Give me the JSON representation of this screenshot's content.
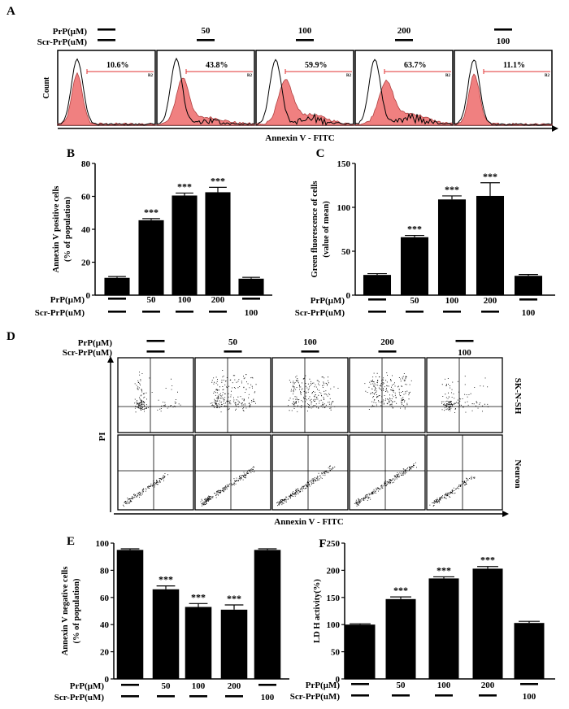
{
  "colors": {
    "fill": "#f08080",
    "fill_line": "#d8a0a0",
    "outline": "#000000",
    "gate": "#e03030"
  },
  "dash": "—",
  "panelA": {
    "letter": "A",
    "row1_label": "PrP(μM)",
    "row2_label": "Scr-PrP(uM)",
    "prp": [
      "—",
      "50",
      "100",
      "200",
      "—"
    ],
    "scr": [
      "—",
      "—",
      "—",
      "—",
      "100"
    ],
    "percents": [
      "10.6%",
      "43.8%",
      "59.9%",
      "63.7%",
      "11.1%"
    ],
    "gate_label": "R2",
    "ylabel": "Count",
    "xlabel": "Annexin V - FITC"
  },
  "panelD": {
    "letter": "D",
    "row1_label": "PrP(μM)",
    "row2_label": "Scr-PrP(uM)",
    "prp": [
      "—",
      "50",
      "100",
      "200",
      "—"
    ],
    "scr": [
      "—",
      "—",
      "—",
      "—",
      "100"
    ],
    "row_labels": [
      "SK-N-SH",
      "Neuron"
    ],
    "ylabel": "PI",
    "xlabel": "Annexin V - FITC"
  },
  "chart_data": [
    {
      "id": "B",
      "type": "bar",
      "ylabel": "Annexin V positive cells (% of population)",
      "ylabel_lines": [
        "Annexin V positive cells",
        "(% of population)"
      ],
      "ylim": [
        0,
        80
      ],
      "yticks": [
        "0",
        "20",
        "40",
        "60",
        "80"
      ],
      "values": [
        10.5,
        45.5,
        60.5,
        62.5,
        10.0
      ],
      "errors": [
        0.8,
        1.0,
        1.5,
        3.0,
        0.8
      ],
      "significance": [
        "",
        "***",
        "***",
        "***",
        ""
      ],
      "row1_label": "PrP(μM)",
      "row2_label": "Scr-PrP(uM)",
      "prp": [
        "—",
        "50",
        "100",
        "200",
        "—"
      ],
      "scr": [
        "—",
        "—",
        "—",
        "—",
        "100"
      ]
    },
    {
      "id": "C",
      "type": "bar",
      "ylabel": "Green fluorescence of cells (value of mean)",
      "ylabel_lines": [
        "Green fluorescence of cells",
        "(value of mean)"
      ],
      "ylim": [
        0,
        150
      ],
      "yticks": [
        "0",
        "50",
        "100",
        "150"
      ],
      "values": [
        23,
        66,
        109,
        113,
        22
      ],
      "errors": [
        1.5,
        2.0,
        4.0,
        15.0,
        1.5
      ],
      "significance": [
        "",
        "***",
        "***",
        "***",
        ""
      ],
      "row1_label": "PrP(μM)",
      "row2_label": "Scr-PrP(uM)",
      "prp": [
        "—",
        "50",
        "100",
        "200",
        "—"
      ],
      "scr": [
        "—",
        "—",
        "—",
        "—",
        "100"
      ]
    },
    {
      "id": "E",
      "type": "bar",
      "ylabel": "Annexin V negative cells (% of population)",
      "ylabel_lines": [
        "Annexin V negative cells",
        "(% of population)"
      ],
      "ylim": [
        0,
        100
      ],
      "yticks": [
        "0",
        "20",
        "40",
        "60",
        "80",
        "100"
      ],
      "values": [
        95,
        66,
        53,
        51,
        95
      ],
      "errors": [
        0.8,
        2.5,
        2.5,
        3.5,
        0.8
      ],
      "significance": [
        "",
        "***",
        "***",
        "***",
        ""
      ],
      "row1_label": "PrP(μM)",
      "row2_label": "Scr-PrP(uM)",
      "prp": [
        "—",
        "50",
        "100",
        "200",
        "—"
      ],
      "scr": [
        "—",
        "—",
        "—",
        "—",
        "100"
      ]
    },
    {
      "id": "F",
      "type": "bar",
      "ylabel": "LD H activity(%)",
      "ylabel_lines": [
        "LD H activity(%)"
      ],
      "ylim": [
        0,
        250
      ],
      "yticks": [
        "0",
        "50",
        "100",
        "150",
        "200",
        "250"
      ],
      "values": [
        100,
        147,
        185,
        203,
        103
      ],
      "errors": [
        1.5,
        4.0,
        3.0,
        4.0,
        3.0
      ],
      "significance": [
        "",
        "***",
        "***",
        "***",
        ""
      ],
      "row1_label": "PrP(μM)",
      "row2_label": "Scr-PrP(uM)",
      "prp": [
        "—",
        "50",
        "100",
        "200",
        "—"
      ],
      "scr": [
        "—",
        "—",
        "—",
        "—",
        "100"
      ]
    }
  ]
}
